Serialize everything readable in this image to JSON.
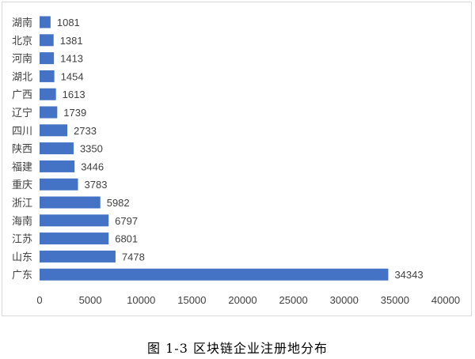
{
  "chart_data": {
    "type": "bar",
    "orientation": "horizontal",
    "categories": [
      "湖南",
      "北京",
      "河南",
      "湖北",
      "广西",
      "辽宁",
      "四川",
      "陕西",
      "福建",
      "重庆",
      "浙江",
      "海南",
      "江苏",
      "山东",
      "广东"
    ],
    "values": [
      1081,
      1381,
      1413,
      1454,
      1613,
      1739,
      2733,
      3350,
      3446,
      3783,
      5982,
      6797,
      6801,
      7478,
      34343
    ],
    "xlim": [
      0,
      40000
    ],
    "x_ticks": [
      "0",
      "5000",
      "10000",
      "15000",
      "20000",
      "25000",
      "30000",
      "35000",
      "40000"
    ],
    "grid": false,
    "bar_color": "#4472c4",
    "data_labels": true
  },
  "caption": "图 1-3  区块链企业注册地分布"
}
